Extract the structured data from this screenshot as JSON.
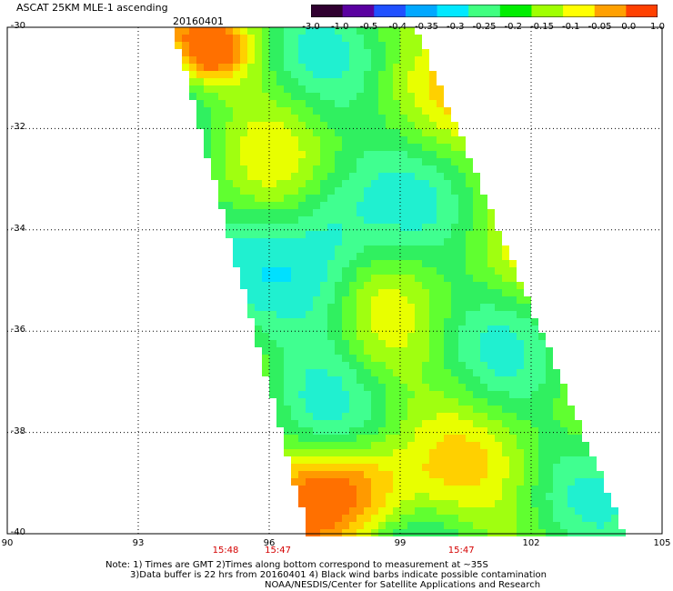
{
  "header": {
    "title": "ASCAT 25KM MLE-1 ascending",
    "date": "20160401"
  },
  "colorbar": {
    "ticks": [
      "-3.0",
      "-1.0",
      "-0.5",
      "-0.4",
      "-0.35",
      "-0.3",
      "-0.25",
      "-0.2",
      "-0.15",
      "-0.1",
      "-0.05",
      "0.0",
      "1.0"
    ],
    "colors": [
      "#300030",
      "#5a00a0",
      "#2050ff",
      "#00a8ff",
      "#00e8ff",
      "#40ff80",
      "#00ee00",
      "#a0ff00",
      "#ffff00",
      "#ffa000",
      "#ff4000"
    ]
  },
  "map": {
    "lat_labels": [
      "-30",
      "-32",
      "-34",
      "-36",
      "-38",
      "-40"
    ],
    "lon_labels": [
      "90",
      "93",
      "96",
      "99",
      "102",
      "105"
    ],
    "lat_values": [
      -30,
      -32,
      -34,
      -36,
      -38,
      -40
    ],
    "lon_values": [
      90,
      93,
      96,
      99,
      102,
      105
    ],
    "pass_times": [
      {
        "text": "15:48",
        "lon": 95.0
      },
      {
        "text": "15:47",
        "lon": 96.2
      },
      {
        "text": "15:47",
        "lon": 100.4
      }
    ]
  },
  "footer": {
    "note_line1": "Note: 1) Times are GMT 2)Times along bottom correspond to measurement at ~35S",
    "note_line2": "3)Data buffer is 22 hrs from 20160401 4) Black wind barbs indicate possible contamination",
    "credit": "NOAA/NESDIS/Center for Satellite Applications and Research"
  }
}
